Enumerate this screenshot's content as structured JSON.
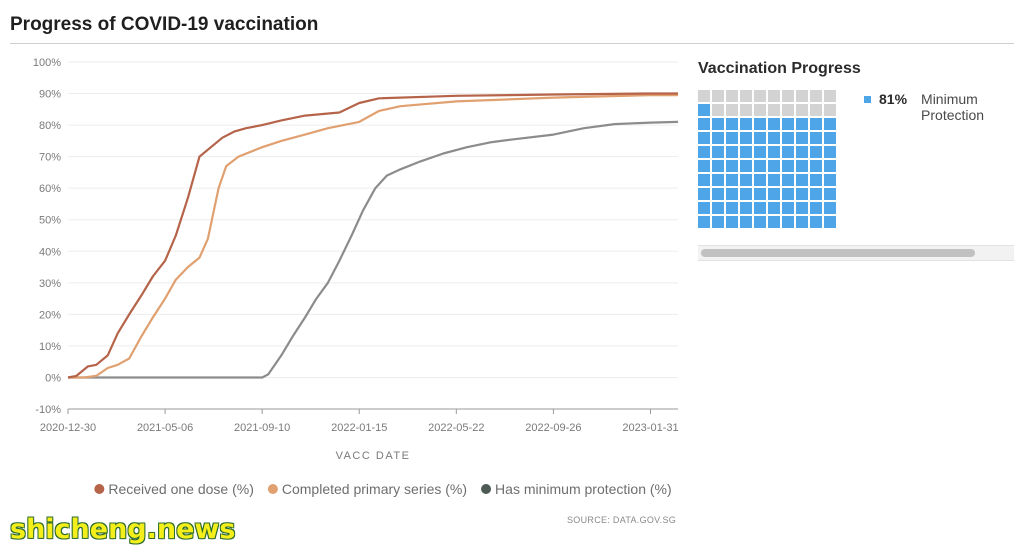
{
  "page": {
    "title": "Progress of COVID-19 vaccination",
    "source": "SOURCE: DATA.GOV.SG",
    "watermark": "shicheng.news"
  },
  "chart_data": [
    {
      "type": "line",
      "xlabel": "VACC DATE",
      "ylabel": "",
      "x_ticks": [
        "2020-12-30",
        "2021-05-06",
        "2021-09-10",
        "2022-01-15",
        "2022-05-22",
        "2022-09-26",
        "2023-01-31"
      ],
      "y_ticks": [
        "-10%",
        "0%",
        "10%",
        "20%",
        "30%",
        "40%",
        "50%",
        "60%",
        "70%",
        "80%",
        "90%",
        "100%"
      ],
      "ylim": [
        -10,
        100
      ],
      "xlim": [
        "2020-12-30",
        "2023-03-08"
      ],
      "grid": true,
      "legend_position": "bottom",
      "series": [
        {
          "name": "Received one dose (%)",
          "color": "#b5644a",
          "points": [
            [
              "2020-12-30",
              0
            ],
            [
              "2021-01-10",
              0.5
            ],
            [
              "2021-01-25",
              3.5
            ],
            [
              "2021-02-05",
              4
            ],
            [
              "2021-02-20",
              7
            ],
            [
              "2021-03-05",
              14
            ],
            [
              "2021-03-20",
              20
            ],
            [
              "2021-04-05",
              26
            ],
            [
              "2021-04-20",
              32
            ],
            [
              "2021-05-06",
              37
            ],
            [
              "2021-05-20",
              45
            ],
            [
              "2021-06-05",
              57
            ],
            [
              "2021-06-20",
              70
            ],
            [
              "2021-07-05",
              73
            ],
            [
              "2021-07-20",
              76
            ],
            [
              "2021-08-05",
              78
            ],
            [
              "2021-08-20",
              79
            ],
            [
              "2021-09-10",
              80
            ],
            [
              "2021-10-05",
              81.5
            ],
            [
              "2021-11-05",
              83
            ],
            [
              "2021-12-20",
              84
            ],
            [
              "2022-01-15",
              87
            ],
            [
              "2022-02-10",
              88.5
            ],
            [
              "2022-05-22",
              89.3
            ],
            [
              "2022-09-26",
              89.7
            ],
            [
              "2023-01-31",
              90
            ],
            [
              "2023-03-08",
              90
            ]
          ]
        },
        {
          "name": "Completed primary series (%)",
          "color": "#e0a070",
          "points": [
            [
              "2020-12-30",
              0
            ],
            [
              "2021-01-20",
              0
            ],
            [
              "2021-02-05",
              0.5
            ],
            [
              "2021-02-20",
              3
            ],
            [
              "2021-03-05",
              4
            ],
            [
              "2021-03-20",
              6
            ],
            [
              "2021-04-05",
              13
            ],
            [
              "2021-04-20",
              19
            ],
            [
              "2021-05-06",
              25
            ],
            [
              "2021-05-20",
              31
            ],
            [
              "2021-06-05",
              35
            ],
            [
              "2021-06-20",
              38
            ],
            [
              "2021-07-01",
              44
            ],
            [
              "2021-07-15",
              60
            ],
            [
              "2021-07-25",
              67
            ],
            [
              "2021-08-10",
              70
            ],
            [
              "2021-09-10",
              73
            ],
            [
              "2021-10-05",
              75
            ],
            [
              "2021-11-05",
              77
            ],
            [
              "2021-12-05",
              79
            ],
            [
              "2022-01-15",
              81
            ],
            [
              "2022-02-10",
              84.5
            ],
            [
              "2022-03-10",
              86
            ],
            [
              "2022-05-22",
              87.5
            ],
            [
              "2022-09-26",
              88.7
            ],
            [
              "2023-01-31",
              89.5
            ],
            [
              "2023-03-08",
              89.5
            ]
          ]
        },
        {
          "name": "Has minimum protection (%)",
          "color": "#8c8c8c",
          "points": [
            [
              "2020-12-30",
              0
            ],
            [
              "2021-09-10",
              0
            ],
            [
              "2021-09-18",
              1
            ],
            [
              "2021-10-05",
              7
            ],
            [
              "2021-10-20",
              13
            ],
            [
              "2021-11-05",
              19
            ],
            [
              "2021-11-20",
              25
            ],
            [
              "2021-12-05",
              30
            ],
            [
              "2021-12-20",
              37
            ],
            [
              "2022-01-05",
              45
            ],
            [
              "2022-01-20",
              53
            ],
            [
              "2022-02-05",
              60
            ],
            [
              "2022-02-20",
              64
            ],
            [
              "2022-03-10",
              66
            ],
            [
              "2022-04-05",
              68.5
            ],
            [
              "2022-05-05",
              71
            ],
            [
              "2022-06-05",
              73
            ],
            [
              "2022-07-05",
              74.5
            ],
            [
              "2022-08-05",
              75.5
            ],
            [
              "2022-09-26",
              77
            ],
            [
              "2022-11-05",
              79
            ],
            [
              "2022-12-15",
              80.3
            ],
            [
              "2023-01-31",
              80.8
            ],
            [
              "2023-03-08",
              81
            ]
          ]
        }
      ],
      "legend_dot_colors": [
        "#b5644a",
        "#e0a070",
        "#4e5a54"
      ]
    },
    {
      "type": "waffle",
      "title": "Vaccination Progress",
      "value_percent": 81,
      "value_label": "81%",
      "label": "Minimum Protection",
      "cells_total": 100,
      "columns": 10,
      "filled_color": "#4ea6e8",
      "empty_color": "#d3d3d3"
    }
  ]
}
